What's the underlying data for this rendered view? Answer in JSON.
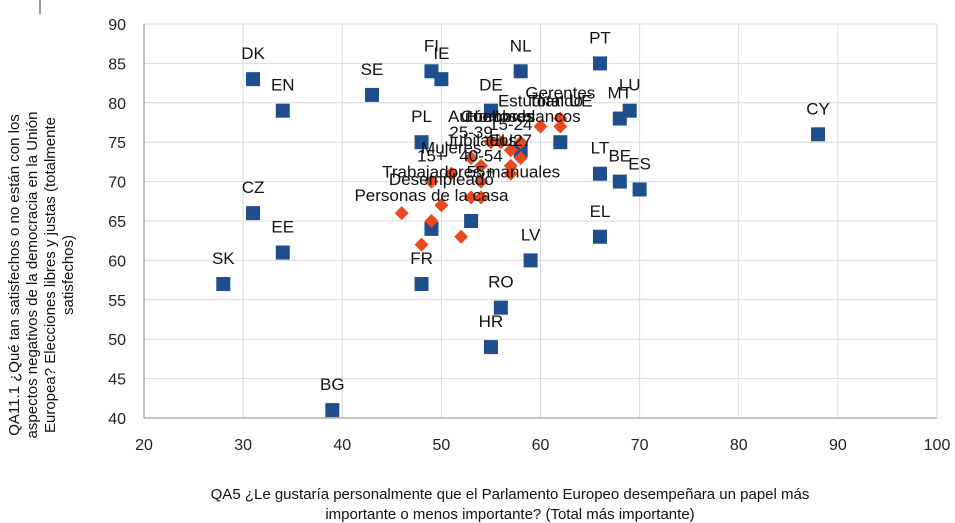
{
  "chart_data": {
    "type": "scatter",
    "title": "",
    "xlabel_lines": [
      "QA5 ¿Le gustaría personalmente que el Parlamento Europeo desempeñara un papel más",
      "importante o menos importante? (Total más importante)"
    ],
    "ylabel_lines": [
      "QA11.1 ¿Qué tan satisfechos o no están con los",
      "aspectos negativos de la democracia en la Unión",
      "Europea? Elecciones libres y justas (totalmente",
      "satisfechos)"
    ],
    "xlim": [
      20,
      100
    ],
    "ylim": [
      40,
      90
    ],
    "xticks": [
      "20",
      "30",
      "40",
      "50",
      "60",
      "70",
      "80",
      "90",
      "100"
    ],
    "yticks": [
      "40",
      "45",
      "50",
      "55",
      "60",
      "65",
      "70",
      "75",
      "80",
      "85",
      "90"
    ],
    "grid": true,
    "series": [
      {
        "marker": "square",
        "color": "#1f4e8c",
        "points": [
          {
            "x": 31,
            "y": 83,
            "label": "DK"
          },
          {
            "x": 34,
            "y": 79,
            "label": "EN"
          },
          {
            "x": 43,
            "y": 81,
            "label": "SE"
          },
          {
            "x": 49,
            "y": 84,
            "label": "FI"
          },
          {
            "x": 50,
            "y": 83,
            "label": "IE"
          },
          {
            "x": 58,
            "y": 84,
            "label": "NL"
          },
          {
            "x": 66,
            "y": 85,
            "label": "PT"
          },
          {
            "x": 55,
            "y": 79,
            "label": "DE"
          },
          {
            "x": 68,
            "y": 78,
            "label": "MT"
          },
          {
            "x": 69,
            "y": 79,
            "label": "LU"
          },
          {
            "x": 48,
            "y": 75,
            "label": "PL"
          },
          {
            "x": 88,
            "y": 76,
            "label": "CY"
          },
          {
            "x": 31,
            "y": 66,
            "label": "CZ"
          },
          {
            "x": 34,
            "y": 61,
            "label": "EE"
          },
          {
            "x": 28,
            "y": 57,
            "label": "SK"
          },
          {
            "x": 66,
            "y": 71,
            "label": "LT"
          },
          {
            "x": 68,
            "y": 70,
            "label": "BE"
          },
          {
            "x": 70,
            "y": 69,
            "label": "ES"
          },
          {
            "x": 66,
            "y": 63,
            "label": "EL"
          },
          {
            "x": 59,
            "y": 60,
            "label": "LV"
          },
          {
            "x": 48,
            "y": 57,
            "label": "FR"
          },
          {
            "x": 56,
            "y": 54,
            "label": "RO"
          },
          {
            "x": 55,
            "y": 49,
            "label": "HR"
          },
          {
            "x": 39,
            "y": 41,
            "label": "BG"
          },
          {
            "x": 49,
            "y": 64,
            "label": ""
          },
          {
            "x": 53,
            "y": 65,
            "label": ""
          },
          {
            "x": 62,
            "y": 75,
            "label": ""
          },
          {
            "x": 58,
            "y": 74,
            "label": ""
          }
        ]
      },
      {
        "marker": "diamond",
        "color": "#e8491d",
        "points": [
          {
            "x": 62,
            "y": 78,
            "label": "Gerentes"
          },
          {
            "x": 62,
            "y": 77,
            "label": "Total UE"
          },
          {
            "x": 60,
            "y": 77,
            "label": "Estudiando"
          },
          {
            "x": 55,
            "y": 75,
            "label": "Autónomos"
          },
          {
            "x": 56,
            "y": 75,
            "label": "Hombres"
          },
          {
            "x": 58,
            "y": 75,
            "label": "Cuellos blancos"
          },
          {
            "x": 57,
            "y": 74,
            "label": "15-24"
          },
          {
            "x": 53,
            "y": 73,
            "label": "25-39"
          },
          {
            "x": 58,
            "y": 73,
            "label": ""
          },
          {
            "x": 54,
            "y": 72,
            "label": "Jubilados"
          },
          {
            "x": 57,
            "y": 72,
            "label": "EU27"
          },
          {
            "x": 57,
            "y": 71,
            "label": ""
          },
          {
            "x": 51,
            "y": 71,
            "label": "Mujeres"
          },
          {
            "x": 49,
            "y": 70,
            "label": "15+"
          },
          {
            "x": 54,
            "y": 70,
            "label": "40-54"
          },
          {
            "x": 53,
            "y": 68,
            "label": "Trabajadores manuales"
          },
          {
            "x": 54,
            "y": 68,
            "label": "55+"
          },
          {
            "x": 50,
            "y": 67,
            "label": "Desempleado"
          },
          {
            "x": 46,
            "y": 66,
            "label": ""
          },
          {
            "x": 49,
            "y": 65,
            "label": "Personas de la casa"
          },
          {
            "x": 52,
            "y": 63,
            "label": ""
          },
          {
            "x": 48,
            "y": 62,
            "label": ""
          }
        ]
      }
    ]
  }
}
